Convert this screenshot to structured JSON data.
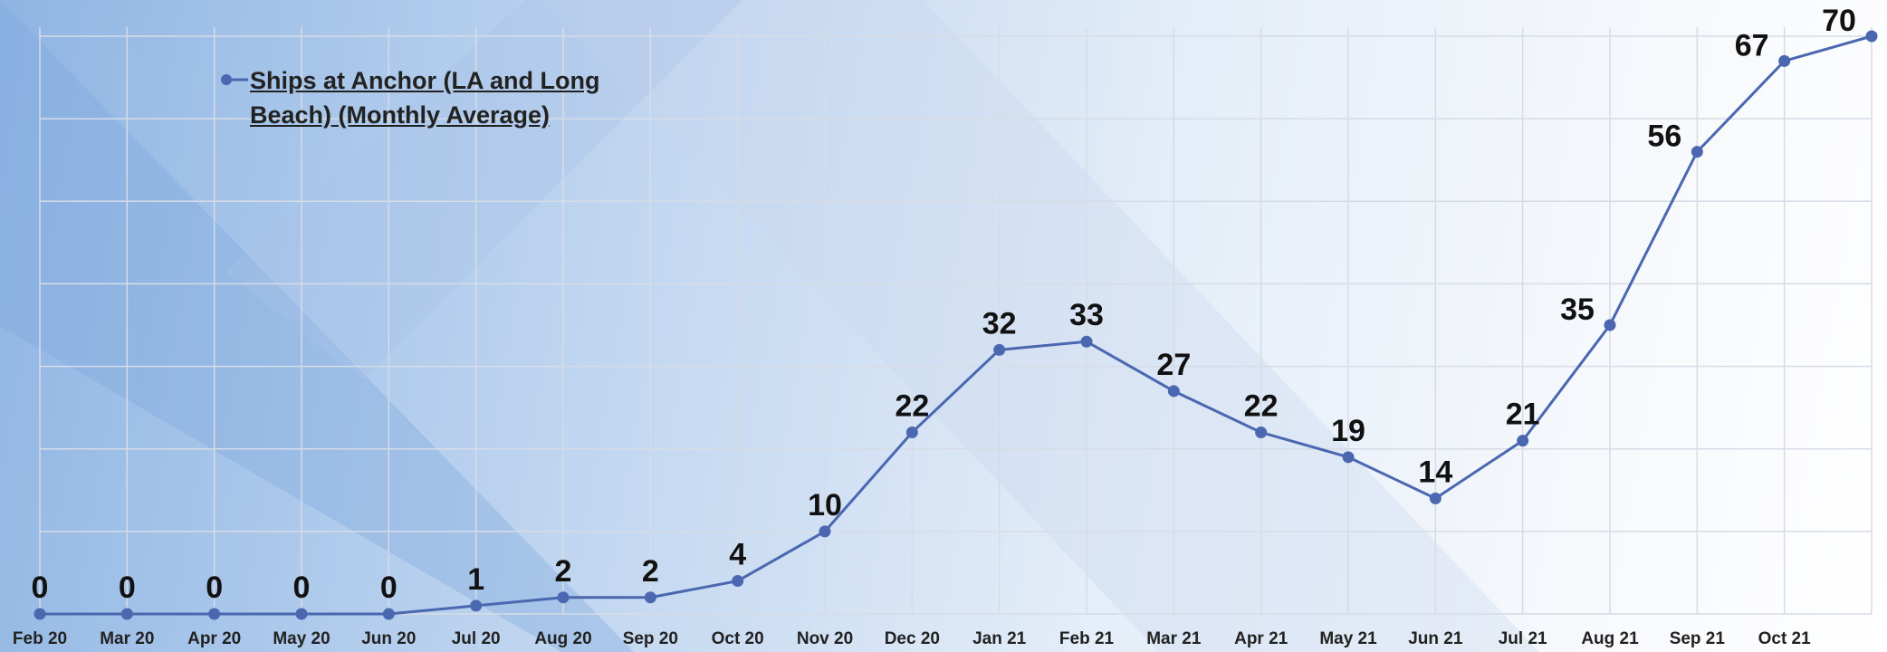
{
  "chart_data": {
    "type": "line",
    "categories": [
      "Feb 20",
      "Mar 20",
      "Apr 20",
      "May 20",
      "Jun 20",
      "Jul 20",
      "Aug 20",
      "Sep 20",
      "Oct 20",
      "Nov 20",
      "Dec 20",
      "Jan 21",
      "Feb 21",
      "Mar 21",
      "Apr 21",
      "May 21",
      "Jun 21",
      "Jul 21",
      "Aug 21",
      "Sep 21",
      "Oct 21",
      null
    ],
    "series": [
      {
        "name": "Ships at Anchor (LA and Long Beach) (Monthly Average)",
        "color": "#4a67b0",
        "values": [
          0,
          0,
          0,
          0,
          0,
          1,
          2,
          2,
          4,
          10,
          22,
          32,
          33,
          27,
          22,
          19,
          14,
          21,
          35,
          56,
          67,
          70
        ]
      }
    ],
    "ylim": [
      0,
      70
    ],
    "yticks": [
      0,
      10,
      20,
      30,
      40,
      50,
      60,
      70
    ],
    "grid": true,
    "legend": "top-left"
  }
}
